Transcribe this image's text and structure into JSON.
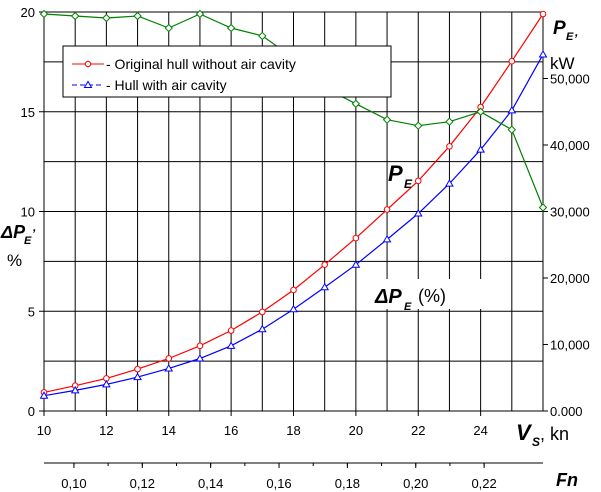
{
  "chart_data": {
    "type": "line",
    "x_axis": {
      "label_main": "V",
      "label_sub": "S",
      "label_unit": ", kn",
      "range": [
        10,
        26
      ],
      "ticks": [
        10,
        12,
        14,
        16,
        18,
        20,
        22,
        24
      ],
      "tick_labels": [
        "10",
        "12",
        "14",
        "16",
        "18",
        "20",
        "22",
        "24"
      ]
    },
    "fn_axis": {
      "label": "Fn",
      "ticks": [
        0.1,
        0.12,
        0.14,
        0.16,
        0.18,
        0.2,
        0.22
      ],
      "tick_labels": [
        "0,10",
        "0,12",
        "0,14",
        "0,16",
        "0,18",
        "0,20",
        "0,22"
      ],
      "speed_per_fn": 109.6
    },
    "left_axis": {
      "label_main": "ΔP",
      "label_sub": "E",
      "label_suffix": ",",
      "unit": "%",
      "range": [
        0,
        20
      ],
      "ticks": [
        0,
        5,
        10,
        15,
        20
      ],
      "tick_labels": [
        "0",
        "5",
        "10",
        "15",
        "20"
      ]
    },
    "right_axis": {
      "label_main": "P",
      "label_sub": "E",
      "label_suffix": ",",
      "unit": "kW",
      "range": [
        0,
        60000
      ],
      "ticks": [
        0,
        10000,
        20000,
        30000,
        40000,
        50000
      ],
      "tick_labels": [
        "0.000",
        "10,000",
        "20,000",
        "30,000",
        "40,000",
        "50,000"
      ]
    },
    "grid": true,
    "legend_position": "top-left",
    "series": [
      {
        "name": "- Original hull without air cavity",
        "axis": "right",
        "color": "#ff0000",
        "marker": "circle",
        "x": [
          10,
          11,
          12,
          13,
          14,
          15,
          16,
          17,
          18,
          19,
          20,
          21,
          22,
          23,
          24,
          25,
          26
        ],
        "y": [
          2800,
          3800,
          4900,
          6300,
          7900,
          9800,
          12100,
          14900,
          18200,
          22000,
          26000,
          30300,
          34600,
          39800,
          45700,
          52600,
          59700
        ]
      },
      {
        "name": "- Hull with air cavity",
        "axis": "right",
        "color": "#0000ff",
        "marker": "triangle",
        "x": [
          10,
          11,
          12,
          13,
          14,
          15,
          16,
          17,
          18,
          19,
          20,
          21,
          22,
          23,
          24,
          25,
          26
        ],
        "y": [
          2300,
          3100,
          4000,
          5100,
          6400,
          7900,
          9800,
          12300,
          15300,
          18600,
          22000,
          25800,
          29700,
          34200,
          39300,
          45200,
          53600
        ]
      },
      {
        "axis": "left",
        "color": "#008000",
        "marker": "diamond",
        "x": [
          10,
          11,
          12,
          13,
          14,
          15,
          16,
          17,
          18,
          19,
          20,
          21,
          22,
          23,
          24,
          25,
          26
        ],
        "y": [
          19.9,
          19.8,
          19.7,
          19.8,
          19.2,
          19.9,
          19.2,
          18.8,
          17.7,
          16.2,
          15.4,
          14.6,
          14.3,
          14.5,
          15.0,
          14.1,
          10.2
        ]
      }
    ],
    "annotations": {
      "pe_label_main": "P",
      "pe_label_sub": "E",
      "dpe_label_main": "ΔP",
      "dpe_label_sub": "E",
      "dpe_label_unit": "(%)"
    }
  }
}
